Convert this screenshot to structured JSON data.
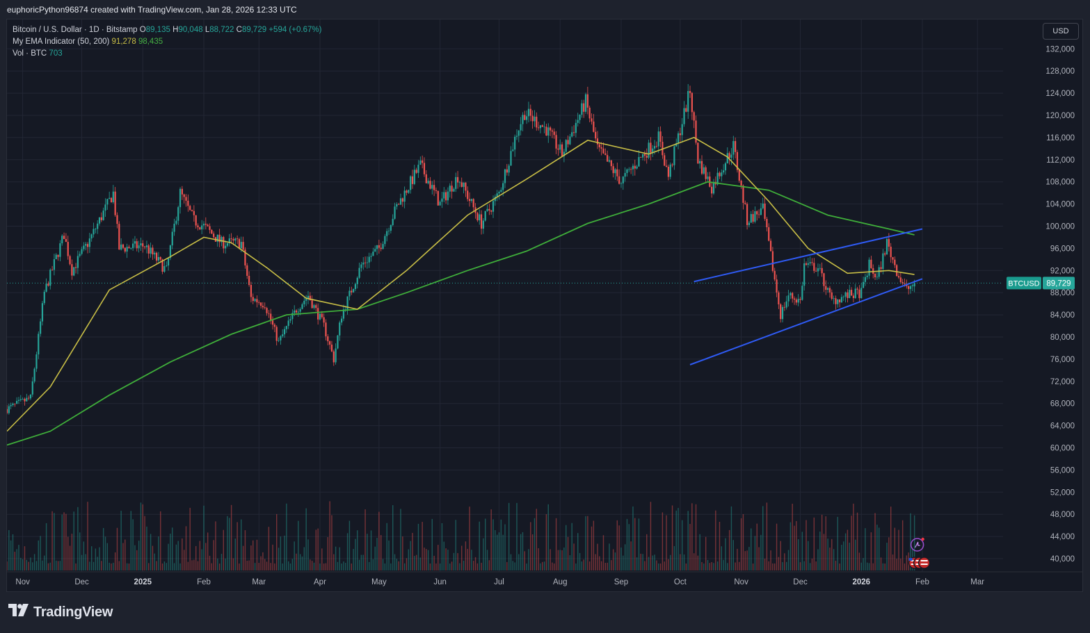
{
  "header": {
    "caption": "euphoricPython96874 created with TradingView.com, Jan 28, 2026 12:33 UTC"
  },
  "legend": {
    "symbol": "Bitcoin / U.S. Dollar · 1D · Bitstamp",
    "o_label": "O",
    "o_value": "89,135",
    "h_label": "H",
    "h_value": "90,048",
    "l_label": "L",
    "l_value": "88,722",
    "c_label": "C",
    "c_value": "89,729",
    "change": "+594 (+0.67%)",
    "ema_name": "My EMA Indicator (50, 200)",
    "ema_fast": "91,278",
    "ema_slow": "98,435",
    "vol_name": "Vol · BTC",
    "vol_value": "703"
  },
  "currency_button": "USD",
  "price_tag": {
    "symbol": "BTCUSD",
    "value": "89,729"
  },
  "footer": {
    "brand": "TradingView"
  },
  "colors": {
    "up": "#26a69a",
    "down": "#ef5350",
    "ema_fast": "#c9bf46",
    "ema_slow": "#3fae3a",
    "trendline": "#2f5bf5",
    "background": "#151924",
    "grid": "#232735",
    "axis_text": "#b2b5be"
  },
  "chart_data": {
    "type": "candlestick",
    "title": "Bitcoin / U.S. Dollar · 1D · Bitstamp",
    "timeframe": "1D",
    "currency": "USD",
    "y_axis_ticks": [
      40000,
      44000,
      48000,
      52000,
      56000,
      60000,
      64000,
      68000,
      72000,
      76000,
      80000,
      84000,
      88000,
      92000,
      96000,
      100000,
      104000,
      108000,
      112000,
      116000,
      120000,
      124000,
      128000,
      132000
    ],
    "y_tick_labels": [
      "40,000",
      "44,000",
      "48,000",
      "52,000",
      "56,000",
      "60,000",
      "64,000",
      "68,000",
      "72,000",
      "76,000",
      "80,000",
      "84,000",
      "88,000",
      "92,000",
      "96,000",
      "100,000",
      "104,000",
      "108,000",
      "112,000",
      "116,000",
      "120,000",
      "124,000",
      "128,000",
      "132,000"
    ],
    "ylim": [
      38000,
      135000
    ],
    "x_axis_labels": [
      {
        "date": "2024-11-01",
        "label": "Nov"
      },
      {
        "date": "2024-12-01",
        "label": "Dec"
      },
      {
        "date": "2025-01-01",
        "label": "2025",
        "bold": true
      },
      {
        "date": "2025-02-01",
        "label": "Feb"
      },
      {
        "date": "2025-03-01",
        "label": "Mar"
      },
      {
        "date": "2025-04-01",
        "label": "Apr"
      },
      {
        "date": "2025-05-01",
        "label": "May"
      },
      {
        "date": "2025-06-01",
        "label": "Jun"
      },
      {
        "date": "2025-07-01",
        "label": "Jul"
      },
      {
        "date": "2025-08-01",
        "label": "Aug"
      },
      {
        "date": "2025-09-01",
        "label": "Sep"
      },
      {
        "date": "2025-10-01",
        "label": "Oct"
      },
      {
        "date": "2025-11-01",
        "label": "Nov"
      },
      {
        "date": "2025-12-01",
        "label": "Dec"
      },
      {
        "date": "2026-01-01",
        "label": "2026",
        "bold": true
      },
      {
        "date": "2026-02-01",
        "label": "Feb"
      },
      {
        "date": "2026-03-01",
        "label": "Mar"
      }
    ],
    "x_range": [
      "2024-10-24",
      "2026-03-14"
    ],
    "price_path": [
      [
        "2024-10-24",
        67000
      ],
      [
        "2024-11-05",
        69000
      ],
      [
        "2024-11-12",
        88000
      ],
      [
        "2024-11-22",
        98500
      ],
      [
        "2024-11-26",
        92000
      ],
      [
        "2024-12-05",
        97500
      ],
      [
        "2024-12-17",
        106000
      ],
      [
        "2024-12-20",
        96000
      ],
      [
        "2025-01-02",
        96500
      ],
      [
        "2025-01-08",
        94000
      ],
      [
        "2025-01-13",
        92000
      ],
      [
        "2025-01-20",
        106000
      ],
      [
        "2025-01-27",
        101000
      ],
      [
        "2025-02-01",
        100000
      ],
      [
        "2025-02-10",
        97000
      ],
      [
        "2025-02-20",
        97000
      ],
      [
        "2025-02-25",
        87000
      ],
      [
        "2025-03-04",
        86000
      ],
      [
        "2025-03-11",
        79000
      ],
      [
        "2025-03-20",
        85000
      ],
      [
        "2025-03-26",
        87500
      ],
      [
        "2025-04-03",
        82000
      ],
      [
        "2025-04-08",
        76000
      ],
      [
        "2025-04-12",
        84000
      ],
      [
        "2025-04-22",
        93000
      ],
      [
        "2025-05-01",
        96000
      ],
      [
        "2025-05-10",
        103500
      ],
      [
        "2025-05-22",
        111000
      ],
      [
        "2025-06-01",
        104000
      ],
      [
        "2025-06-10",
        109000
      ],
      [
        "2025-06-22",
        100500
      ],
      [
        "2025-07-01",
        106000
      ],
      [
        "2025-07-10",
        117000
      ],
      [
        "2025-07-14",
        120500
      ],
      [
        "2025-07-25",
        117500
      ],
      [
        "2025-08-02",
        113000
      ],
      [
        "2025-08-14",
        122500
      ],
      [
        "2025-08-20",
        114000
      ],
      [
        "2025-09-01",
        108000
      ],
      [
        "2025-09-10",
        112000
      ],
      [
        "2025-09-20",
        116000
      ],
      [
        "2025-09-25",
        109000
      ],
      [
        "2025-10-06",
        124500
      ],
      [
        "2025-10-10",
        112000
      ],
      [
        "2025-10-17",
        107000
      ],
      [
        "2025-10-28",
        114500
      ],
      [
        "2025-11-04",
        101000
      ],
      [
        "2025-11-12",
        103000
      ],
      [
        "2025-11-21",
        84000
      ],
      [
        "2025-11-25",
        87500
      ],
      [
        "2025-12-01",
        86500
      ],
      [
        "2025-12-03",
        93000
      ],
      [
        "2025-12-10",
        92500
      ],
      [
        "2025-12-17",
        86500
      ],
      [
        "2025-12-25",
        87500
      ],
      [
        "2026-01-01",
        88000
      ],
      [
        "2026-01-05",
        93000
      ],
      [
        "2026-01-09",
        90500
      ],
      [
        "2026-01-14",
        97000
      ],
      [
        "2026-01-20",
        91000
      ],
      [
        "2026-01-24",
        88500
      ],
      [
        "2026-01-28",
        89729
      ]
    ],
    "ema_50_path": [
      [
        "2024-10-24",
        63000
      ],
      [
        "2024-11-15",
        71000
      ],
      [
        "2024-12-15",
        88500
      ],
      [
        "2025-01-15",
        94500
      ],
      [
        "2025-02-01",
        98000
      ],
      [
        "2025-02-15",
        97000
      ],
      [
        "2025-03-05",
        92500
      ],
      [
        "2025-03-25",
        87000
      ],
      [
        "2025-04-20",
        85000
      ],
      [
        "2025-05-15",
        92000
      ],
      [
        "2025-06-15",
        102000
      ],
      [
        "2025-07-15",
        108500
      ],
      [
        "2025-08-15",
        115500
      ],
      [
        "2025-09-15",
        113000
      ],
      [
        "2025-10-08",
        116000
      ],
      [
        "2025-10-25",
        112500
      ],
      [
        "2025-11-15",
        104500
      ],
      [
        "2025-12-05",
        96000
      ],
      [
        "2025-12-25",
        91500
      ],
      [
        "2026-01-15",
        92000
      ],
      [
        "2026-01-28",
        91278
      ]
    ],
    "ema_200_path": [
      [
        "2024-10-24",
        60500
      ],
      [
        "2024-11-15",
        63000
      ],
      [
        "2024-12-15",
        69500
      ],
      [
        "2025-01-15",
        75500
      ],
      [
        "2025-02-15",
        80500
      ],
      [
        "2025-03-15",
        84000
      ],
      [
        "2025-04-20",
        85000
      ],
      [
        "2025-05-15",
        88000
      ],
      [
        "2025-06-15",
        92000
      ],
      [
        "2025-07-15",
        95500
      ],
      [
        "2025-08-15",
        100500
      ],
      [
        "2025-09-15",
        104000
      ],
      [
        "2025-10-15",
        108000
      ],
      [
        "2025-11-15",
        106500
      ],
      [
        "2025-12-15",
        102000
      ],
      [
        "2026-01-15",
        99500
      ],
      [
        "2026-01-28",
        98435
      ]
    ],
    "trendlines": [
      {
        "name": "channel-upper",
        "from": [
          "2025-10-08",
          90000
        ],
        "to": [
          "2026-02-01",
          99500
        ]
      },
      {
        "name": "channel-lower",
        "from": [
          "2025-10-06",
          75000
        ],
        "to": [
          "2026-02-01",
          90500
        ]
      }
    ],
    "last": {
      "open": 89135,
      "high": 90048,
      "low": 88722,
      "close": 89729,
      "change": 594,
      "change_pct": 0.67
    },
    "volume_last": 703,
    "volume_unit": "BTC"
  }
}
